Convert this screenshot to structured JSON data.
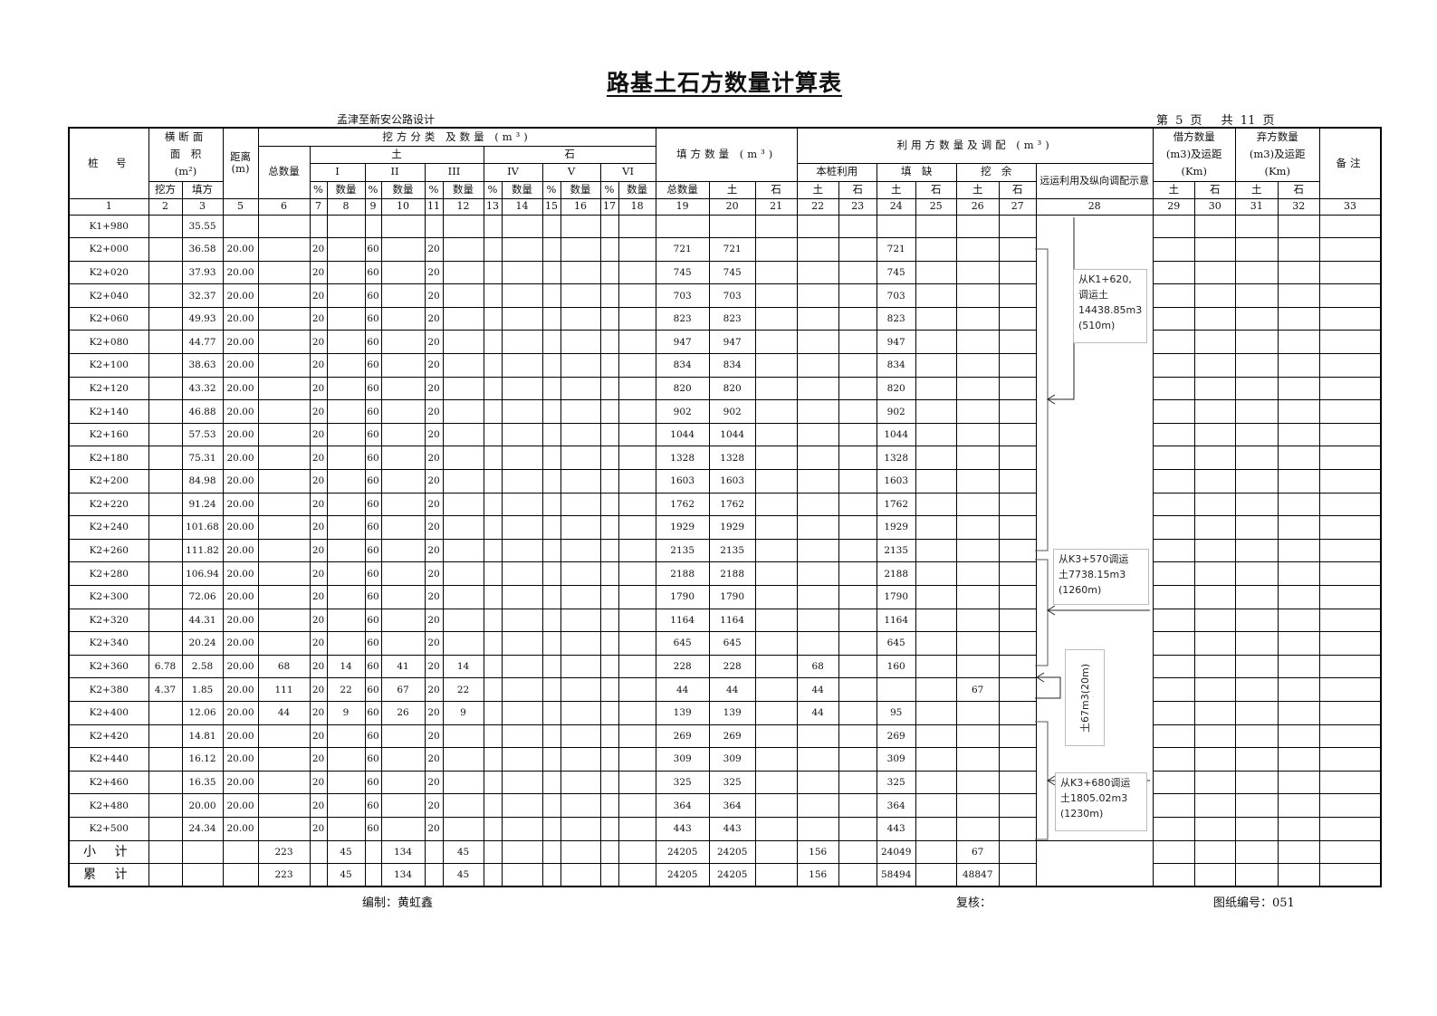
{
  "title": "路基土石方数量计算表",
  "project": "孟津至新安公路设计",
  "page_info": "第 5 页　 共 11 页",
  "header": {
    "station": "桩　号",
    "section_area_l1": "横断面",
    "section_area_l2": "面　积",
    "section_area_l3": "(m²)",
    "distance": "距离\n(m)",
    "cut_class": "挖方分类 及数量 (m³)",
    "cut_total": "总数量",
    "soil": "土",
    "rock": "石",
    "grades": [
      "I",
      "II",
      "III",
      "IV",
      "V",
      "VI"
    ],
    "pct": "%",
    "qty": "数量",
    "cut": "挖方",
    "fill": "填方",
    "fill_qty": "填方数量 (m³)",
    "fill_total": "总数量",
    "usage": "利用方数量及调配 (m³)",
    "own_use": "本桩利用",
    "shortage": "填　缺",
    "surplus": "挖　余",
    "haul": "远运利用及纵向调配示意",
    "borrow": "借方数量\n(m3)及运距\n(Km)",
    "waste": "弃方数量\n(m3)及运距\n(Km)",
    "remark": "备注",
    "column_numbers": [
      "1",
      "2",
      "3",
      "5",
      "6",
      "7",
      "8",
      "9",
      "10",
      "11",
      "12",
      "13",
      "14",
      "15",
      "16",
      "17",
      "18",
      "19",
      "20",
      "21",
      "22",
      "23",
      "24",
      "25",
      "26",
      "27",
      "28",
      "29",
      "30",
      "31",
      "32",
      "33"
    ]
  },
  "rows": [
    {
      "station": "K1+980",
      "fill_area": "35.55"
    },
    {
      "station": "K2+000",
      "fill_area": "36.58",
      "dist": "20.00",
      "p1": "20",
      "p2": "60",
      "p3": "20",
      "fill_total": "721",
      "fill_soil": "721",
      "short_soil": "721"
    },
    {
      "station": "K2+020",
      "fill_area": "37.93",
      "dist": "20.00",
      "p1": "20",
      "p2": "60",
      "p3": "20",
      "fill_total": "745",
      "fill_soil": "745",
      "short_soil": "745"
    },
    {
      "station": "K2+040",
      "fill_area": "32.37",
      "dist": "20.00",
      "p1": "20",
      "p2": "60",
      "p3": "20",
      "fill_total": "703",
      "fill_soil": "703",
      "short_soil": "703"
    },
    {
      "station": "K2+060",
      "fill_area": "49.93",
      "dist": "20.00",
      "p1": "20",
      "p2": "60",
      "p3": "20",
      "fill_total": "823",
      "fill_soil": "823",
      "short_soil": "823"
    },
    {
      "station": "K2+080",
      "fill_area": "44.77",
      "dist": "20.00",
      "p1": "20",
      "p2": "60",
      "p3": "20",
      "fill_total": "947",
      "fill_soil": "947",
      "short_soil": "947"
    },
    {
      "station": "K2+100",
      "fill_area": "38.63",
      "dist": "20.00",
      "p1": "20",
      "p2": "60",
      "p3": "20",
      "fill_total": "834",
      "fill_soil": "834",
      "short_soil": "834"
    },
    {
      "station": "K2+120",
      "fill_area": "43.32",
      "dist": "20.00",
      "p1": "20",
      "p2": "60",
      "p3": "20",
      "fill_total": "820",
      "fill_soil": "820",
      "short_soil": "820"
    },
    {
      "station": "K2+140",
      "fill_area": "46.88",
      "dist": "20.00",
      "p1": "20",
      "p2": "60",
      "p3": "20",
      "fill_total": "902",
      "fill_soil": "902",
      "short_soil": "902"
    },
    {
      "station": "K2+160",
      "fill_area": "57.53",
      "dist": "20.00",
      "p1": "20",
      "p2": "60",
      "p3": "20",
      "fill_total": "1044",
      "fill_soil": "1044",
      "short_soil": "1044"
    },
    {
      "station": "K2+180",
      "fill_area": "75.31",
      "dist": "20.00",
      "p1": "20",
      "p2": "60",
      "p3": "20",
      "fill_total": "1328",
      "fill_soil": "1328",
      "short_soil": "1328"
    },
    {
      "station": "K2+200",
      "fill_area": "84.98",
      "dist": "20.00",
      "p1": "20",
      "p2": "60",
      "p3": "20",
      "fill_total": "1603",
      "fill_soil": "1603",
      "short_soil": "1603"
    },
    {
      "station": "K2+220",
      "fill_area": "91.24",
      "dist": "20.00",
      "p1": "20",
      "p2": "60",
      "p3": "20",
      "fill_total": "1762",
      "fill_soil": "1762",
      "short_soil": "1762"
    },
    {
      "station": "K2+240",
      "fill_area": "101.68",
      "dist": "20.00",
      "p1": "20",
      "p2": "60",
      "p3": "20",
      "fill_total": "1929",
      "fill_soil": "1929",
      "short_soil": "1929"
    },
    {
      "station": "K2+260",
      "fill_area": "111.82",
      "dist": "20.00",
      "p1": "20",
      "p2": "60",
      "p3": "20",
      "fill_total": "2135",
      "fill_soil": "2135",
      "short_soil": "2135"
    },
    {
      "station": "K2+280",
      "fill_area": "106.94",
      "dist": "20.00",
      "p1": "20",
      "p2": "60",
      "p3": "20",
      "fill_total": "2188",
      "fill_soil": "2188",
      "short_soil": "2188"
    },
    {
      "station": "K2+300",
      "fill_area": "72.06",
      "dist": "20.00",
      "p1": "20",
      "p2": "60",
      "p3": "20",
      "fill_total": "1790",
      "fill_soil": "1790",
      "short_soil": "1790"
    },
    {
      "station": "K2+320",
      "fill_area": "44.31",
      "dist": "20.00",
      "p1": "20",
      "p2": "60",
      "p3": "20",
      "fill_total": "1164",
      "fill_soil": "1164",
      "short_soil": "1164"
    },
    {
      "station": "K2+340",
      "fill_area": "20.24",
      "dist": "20.00",
      "p1": "20",
      "p2": "60",
      "p3": "20",
      "fill_total": "645",
      "fill_soil": "645",
      "short_soil": "645"
    },
    {
      "station": "K2+360",
      "cut_area": "6.78",
      "fill_area": "2.58",
      "dist": "20.00",
      "cut_total": "68",
      "p1": "20",
      "q1": "14",
      "p2": "60",
      "q2": "41",
      "p3": "20",
      "q3": "14",
      "fill_total": "228",
      "fill_soil": "228",
      "own_soil": "68",
      "short_soil": "160"
    },
    {
      "station": "K2+380",
      "cut_area": "4.37",
      "fill_area": "1.85",
      "dist": "20.00",
      "cut_total": "111",
      "p1": "20",
      "q1": "22",
      "p2": "60",
      "q2": "67",
      "p3": "20",
      "q3": "22",
      "fill_total": "44",
      "fill_soil": "44",
      "own_soil": "44",
      "surplus_soil": "67"
    },
    {
      "station": "K2+400",
      "fill_area": "12.06",
      "dist": "20.00",
      "cut_total": "44",
      "p1": "20",
      "q1": "9",
      "p2": "60",
      "q2": "26",
      "p3": "20",
      "q3": "9",
      "fill_total": "139",
      "fill_soil": "139",
      "own_soil": "44",
      "short_soil": "95"
    },
    {
      "station": "K2+420",
      "fill_area": "14.81",
      "dist": "20.00",
      "p1": "20",
      "p2": "60",
      "p3": "20",
      "fill_total": "269",
      "fill_soil": "269",
      "short_soil": "269"
    },
    {
      "station": "K2+440",
      "fill_area": "16.12",
      "dist": "20.00",
      "p1": "20",
      "p2": "60",
      "p3": "20",
      "fill_total": "309",
      "fill_soil": "309",
      "short_soil": "309"
    },
    {
      "station": "K2+460",
      "fill_area": "16.35",
      "dist": "20.00",
      "p1": "20",
      "p2": "60",
      "p3": "20",
      "fill_total": "325",
      "fill_soil": "325",
      "short_soil": "325"
    },
    {
      "station": "K2+480",
      "fill_area": "20.00",
      "dist": "20.00",
      "p1": "20",
      "p2": "60",
      "p3": "20",
      "fill_total": "364",
      "fill_soil": "364",
      "short_soil": "364"
    },
    {
      "station": "K2+500",
      "fill_area": "24.34",
      "dist": "20.00",
      "p1": "20",
      "p2": "60",
      "p3": "20",
      "fill_total": "443",
      "fill_soil": "443",
      "short_soil": "443"
    }
  ],
  "totals": [
    {
      "station": "小 计",
      "cut_total": "223",
      "q1": "45",
      "q2": "134",
      "q3": "45",
      "fill_total": "24205",
      "fill_soil": "24205",
      "own_soil": "156",
      "short_soil": "24049",
      "surplus_soil": "67"
    },
    {
      "station": "累 计",
      "cut_total": "223",
      "q1": "45",
      "q2": "134",
      "q3": "45",
      "fill_total": "24205",
      "fill_soil": "24205",
      "own_soil": "156",
      "short_soil": "58494",
      "surplus_soil": "48847"
    }
  ],
  "haul_notes": {
    "note1": "从K1+620,\n调运土\n14438.85m3\n(510m)",
    "note2": "从K3+570调运\n土7738.15m3\n(1260m)",
    "note3": "土67m3(20m)",
    "note4": "从K3+680调运\n土1805.02m3\n(1230m)"
  },
  "footer": {
    "compiled_by": "编制：黄虹鑫",
    "reviewed_by": "复核：",
    "drawing_no": "图纸编号：051"
  }
}
